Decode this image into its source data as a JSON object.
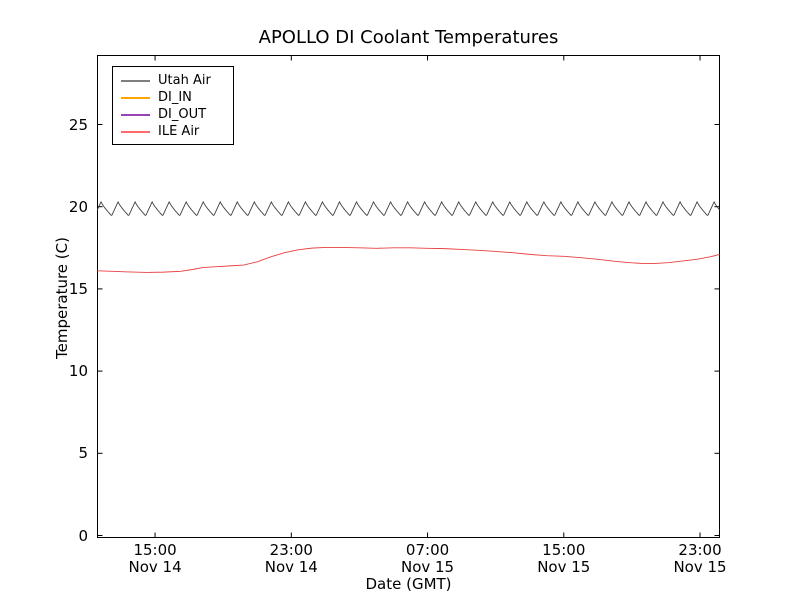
{
  "chart_data": {
    "type": "line",
    "title": "APOLLO DI Coolant Temperatures",
    "xlabel": "Date (GMT)",
    "ylabel": "Temperature (C)",
    "x_unit": "hours since Nov 14 00:00 GMT",
    "xlim": [
      11.59,
      48.17
    ],
    "ylim": [
      0,
      29.26
    ],
    "grid": false,
    "yticks": [
      0,
      5,
      10,
      15,
      20,
      25
    ],
    "xticks": [
      {
        "hour": 15,
        "time": "15:00",
        "date": "Nov 14"
      },
      {
        "hour": 23,
        "time": "23:00",
        "date": "Nov 14"
      },
      {
        "hour": 31,
        "time": "07:00",
        "date": "Nov 15"
      },
      {
        "hour": 39,
        "time": "15:00",
        "date": "Nov 15"
      },
      {
        "hour": 47,
        "time": "23:00",
        "date": "Nov 15"
      }
    ],
    "legend": {
      "position": "upper left",
      "entries": [
        "Utah Air",
        "DI_IN",
        "DI_OUT",
        "ILE Air"
      ]
    },
    "series": [
      {
        "name": "Utah Air",
        "color": "#3f3f3f",
        "legend_color": "#7f7f7f",
        "style": "sawtooth-oscillation",
        "min": 19.45,
        "max": 20.3,
        "mean": 19.9,
        "period_hours": 1.0
      },
      {
        "name": "DI_IN",
        "color": "#ffa500",
        "legend_color": "#ffa500",
        "points": []
      },
      {
        "name": "DI_OUT",
        "color": "#800080",
        "legend_color": "#9a43b5",
        "points": []
      },
      {
        "name": "ILE Air",
        "color": "#e84040",
        "legend_color": "#ff6b6b",
        "points": [
          [
            11.6,
            16.1
          ],
          [
            12.5,
            16.07
          ],
          [
            13.5,
            16.03
          ],
          [
            14.5,
            16.0
          ],
          [
            15.5,
            16.02
          ],
          [
            16.5,
            16.07
          ],
          [
            17.2,
            16.18
          ],
          [
            17.8,
            16.3
          ],
          [
            18.6,
            16.35
          ],
          [
            19.4,
            16.4
          ],
          [
            20.2,
            16.45
          ],
          [
            21.0,
            16.65
          ],
          [
            21.8,
            16.95
          ],
          [
            22.6,
            17.2
          ],
          [
            23.4,
            17.38
          ],
          [
            24.2,
            17.48
          ],
          [
            25.0,
            17.52
          ],
          [
            26.0,
            17.52
          ],
          [
            27.0,
            17.5
          ],
          [
            28.0,
            17.47
          ],
          [
            29.0,
            17.5
          ],
          [
            30.0,
            17.5
          ],
          [
            31.0,
            17.47
          ],
          [
            32.0,
            17.45
          ],
          [
            33.0,
            17.4
          ],
          [
            34.0,
            17.35
          ],
          [
            35.0,
            17.28
          ],
          [
            36.0,
            17.2
          ],
          [
            37.0,
            17.1
          ],
          [
            38.0,
            17.02
          ],
          [
            39.0,
            16.98
          ],
          [
            40.0,
            16.9
          ],
          [
            41.0,
            16.8
          ],
          [
            42.0,
            16.68
          ],
          [
            42.8,
            16.6
          ],
          [
            43.6,
            16.55
          ],
          [
            44.4,
            16.55
          ],
          [
            45.2,
            16.6
          ],
          [
            46.0,
            16.7
          ],
          [
            46.8,
            16.8
          ],
          [
            47.6,
            16.95
          ],
          [
            48.15,
            17.1
          ]
        ]
      }
    ]
  }
}
